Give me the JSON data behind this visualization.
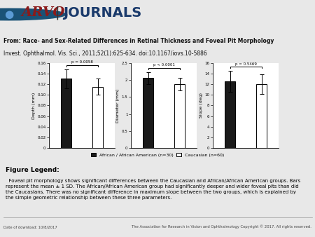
{
  "subplots": [
    {
      "ylabel": "Depth (mm)",
      "ylim": [
        0,
        0.16
      ],
      "yticks": [
        0,
        0.02,
        0.04,
        0.06,
        0.08,
        0.1,
        0.12,
        0.14,
        0.16
      ],
      "ytick_labels": [
        "0",
        "0.02",
        "0.04",
        "0.06",
        "0.08",
        "0.10",
        "0.12",
        "0.14",
        "0.16"
      ],
      "values": [
        0.13,
        0.115
      ],
      "errors": [
        0.018,
        0.015
      ],
      "pvalue": "p = 0.0058"
    },
    {
      "ylabel": "Diameter (mm)",
      "ylim": [
        0,
        2.5
      ],
      "yticks": [
        0,
        0.5,
        1.0,
        1.5,
        2.0,
        2.5
      ],
      "ytick_labels": [
        "0",
        "0.5",
        "1",
        "1.5",
        "2",
        "2.5"
      ],
      "values": [
        2.05,
        1.88
      ],
      "errors": [
        0.18,
        0.18
      ],
      "pvalue": "p < 0.0001"
    },
    {
      "ylabel": "Slope (deg)",
      "ylim": [
        0,
        16
      ],
      "yticks": [
        0,
        2,
        4,
        6,
        8,
        10,
        12,
        14,
        16
      ],
      "ytick_labels": [
        "0",
        "2",
        "4",
        "6",
        "8",
        "10",
        "12",
        "14",
        "16"
      ],
      "values": [
        12.5,
        12.0
      ],
      "errors": [
        2.0,
        1.8
      ],
      "pvalue": "p = 0.5469"
    }
  ],
  "bar_colors": [
    "#1a1a1a",
    "#ffffff"
  ],
  "bar_edgecolor": "#000000",
  "legend_labels": [
    "African / African American (n=30)",
    "Caucasian (n=60)"
  ],
  "page_bg": "#e8e8e8",
  "header_logo_bg": "#ffffff",
  "header_title_bg": "#d8d8d8",
  "chart_bg": "#ffffff",
  "footer_bg": "#e8e8e8",
  "title_line1": "From: Race- and Sex-Related Differences in Retinal Thickness and Foveal Pit Morphology",
  "title_line2": "Invest. Ophthalmol. Vis. Sci., 2011;52(1):625-634. doi:10.1167/iovs.10-5886",
  "arvo_text": "ARVO.",
  "journals_text": "JOURNALS",
  "figure_legend_title": "Figure Legend:",
  "figure_legend_text": "  Foveal pit morphology shows significant differences between the Caucasian and African/African American groups. Bars\nrepresent the mean ± 1 SD. The African/African American group had significantly deeper and wider foveal pits than did\nthe Caucasians. There was no significant difference in maximum slope between the two groups, which is explained by\nthe simple geometric relationship between these three parameters.",
  "footer_left": "Date of download: 10/8/2017",
  "footer_right": "The Association for Research in Vision and Ophthalmology Copyright © 2017. All rights reserved.",
  "bar_width": 0.32
}
